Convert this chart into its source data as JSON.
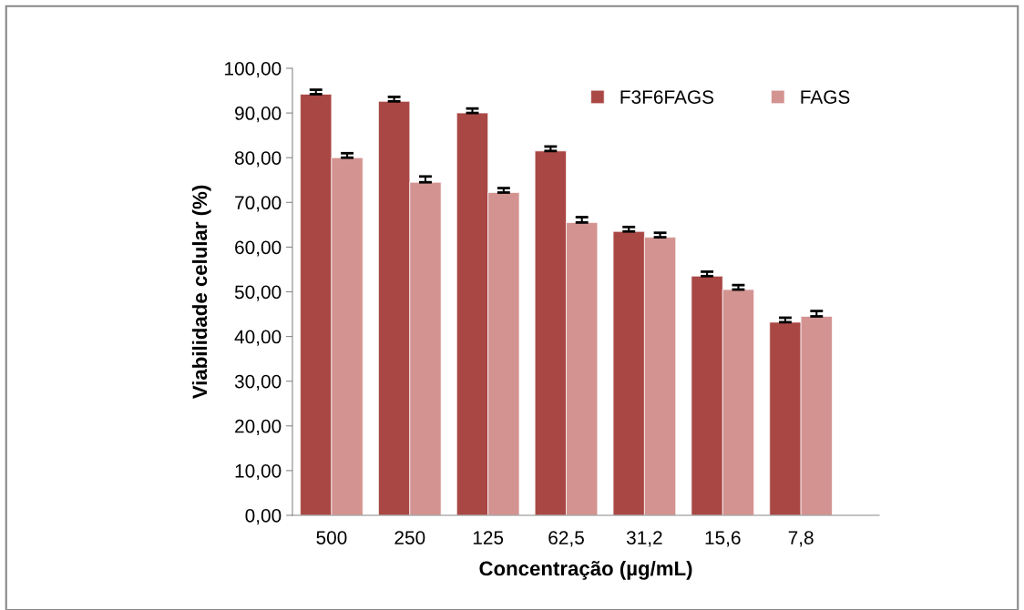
{
  "chart_data": {
    "type": "bar",
    "xlabel": "Concentração (µg/mL)",
    "ylabel": "Viabilidade celular (%)",
    "categories": [
      "500",
      "250",
      "125",
      "62,5",
      "31,2",
      "15,6",
      "7,8"
    ],
    "series": [
      {
        "name": "F3F6FAGS",
        "color": "#a94744",
        "values": [
          94.2,
          92.6,
          90.0,
          81.5,
          63.5,
          53.5,
          43.2
        ],
        "errors": [
          1.0,
          1.0,
          1.0,
          1.0,
          1.0,
          1.0,
          1.0
        ]
      },
      {
        "name": "FAGS",
        "color": "#d39391",
        "values": [
          80.0,
          74.5,
          72.2,
          65.5,
          62.2,
          50.5,
          44.5
        ],
        "errors": [
          1.0,
          1.3,
          1.0,
          1.2,
          1.0,
          1.0,
          1.2
        ]
      }
    ],
    "ylim": [
      0,
      100
    ],
    "yticks": [
      {
        "value": 0,
        "label": "0,00"
      },
      {
        "value": 10,
        "label": "10,00"
      },
      {
        "value": 20,
        "label": "20,00"
      },
      {
        "value": 30,
        "label": "30,00"
      },
      {
        "value": 40,
        "label": "40,00"
      },
      {
        "value": 50,
        "label": "50,00"
      },
      {
        "value": 60,
        "label": "60,00"
      },
      {
        "value": 70,
        "label": "70,00"
      },
      {
        "value": 80,
        "label": "80,00"
      },
      {
        "value": 90,
        "label": "90,00"
      },
      {
        "value": 100,
        "label": "100,00"
      }
    ],
    "legend": "top right",
    "grid": false
  }
}
